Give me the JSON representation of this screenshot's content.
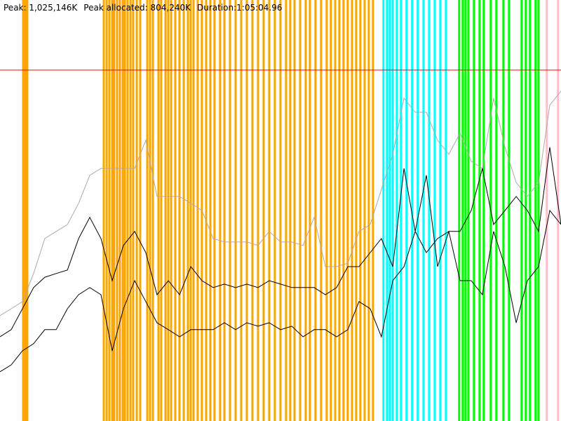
{
  "chart_data": {
    "type": "line",
    "stats": [
      "Peak: 1,025,146K",
      "Peak allocated: 804,240K",
      "Duration:1:05:04.96"
    ],
    "xlim": [
      0,
      3905
    ],
    "ylim": [
      0,
      1230000
    ],
    "x": [
      0,
      78,
      156,
      234,
      312,
      391,
      469,
      547,
      625,
      703,
      781,
      859,
      937,
      1015,
      1093,
      1172,
      1250,
      1328,
      1406,
      1484,
      1562,
      1640,
      1718,
      1796,
      1874,
      1953,
      2031,
      2109,
      2187,
      2265,
      2343,
      2421,
      2499,
      2577,
      2655,
      2734,
      2812,
      2890,
      2968,
      3046,
      3124,
      3202,
      3280,
      3358,
      3436,
      3515,
      3593,
      3671,
      3749,
      3827,
      3905
    ],
    "series": [
      {
        "color": "#aaaaaa",
        "values": [
          308000,
          328000,
          349000,
          431000,
          533000,
          554000,
          574000,
          636000,
          718000,
          738000,
          738000,
          738000,
          738000,
          820000,
          656000,
          656000,
          656000,
          636000,
          615000,
          533000,
          523000,
          523000,
          523000,
          513000,
          554000,
          523000,
          523000,
          513000,
          595000,
          451000,
          451000,
          461000,
          554000,
          574000,
          677000,
          779000,
          943000,
          902000,
          902000,
          820000,
          779000,
          841000,
          759000,
          738000,
          943000,
          800000,
          697000,
          656000,
          697000,
          923000,
          964000
        ]
      },
      {
        "color": "#000000",
        "values": [
          246000,
          267000,
          328000,
          390000,
          420000,
          431000,
          441000,
          533000,
          595000,
          533000,
          410000,
          513000,
          554000,
          492000,
          369000,
          410000,
          369000,
          451000,
          410000,
          390000,
          400000,
          390000,
          400000,
          390000,
          410000,
          400000,
          390000,
          390000,
          390000,
          369000,
          390000,
          451000,
          451000,
          492000,
          533000,
          451000,
          738000,
          554000,
          718000,
          451000,
          554000,
          554000,
          615000,
          738000,
          574000,
          615000,
          656000,
          615000,
          554000,
          800000,
          574000
        ]
      },
      {
        "color": "#000000",
        "values": [
          144000,
          164000,
          205000,
          226000,
          267000,
          267000,
          328000,
          369000,
          390000,
          369000,
          205000,
          328000,
          410000,
          349000,
          287000,
          267000,
          246000,
          267000,
          267000,
          267000,
          287000,
          267000,
          287000,
          277000,
          287000,
          267000,
          277000,
          246000,
          267000,
          267000,
          246000,
          267000,
          349000,
          328000,
          246000,
          410000,
          451000,
          554000,
          492000,
          533000,
          554000,
          410000,
          410000,
          369000,
          554000,
          451000,
          287000,
          410000,
          451000,
          615000,
          574000
        ]
      }
    ],
    "events": [
      {
        "color": "#ffa500",
        "x": [
          161,
          176,
          190,
          722,
          742,
          761,
          781,
          795,
          815,
          834,
          854,
          869,
          888,
          908,
          927,
          952,
          976,
          1025,
          1044,
          1064,
          1103,
          1122,
          1152,
          1171,
          1191,
          1220,
          1249,
          1279,
          1308,
          1327,
          1347,
          1376,
          1405,
          1435,
          1464,
          1493,
          1532,
          1562,
          1601,
          1640,
          1679,
          1718,
          1757,
          1796,
          1835,
          1874,
          1913,
          1952,
          1991,
          2020,
          2050,
          2089,
          2128,
          2157,
          2196,
          2235,
          2274,
          2303,
          2333,
          2362,
          2391,
          2420,
          2450,
          2479,
          2508,
          2538,
          2567,
          2596
        ]
      },
      {
        "color": "#00ffff",
        "x": [
          2669,
          2694,
          2713,
          2733,
          2762,
          2791,
          2830,
          2869,
          2908,
          2948,
          2987,
          3026,
          3065,
          3104
        ]
      },
      {
        "color": "#00ff00",
        "x": [
          3196,
          3221,
          3240,
          3260,
          3299,
          3338,
          3367,
          3416,
          3455,
          3504,
          3543,
          3631,
          3660,
          3689,
          3728,
          3748
        ]
      },
      {
        "color": "#ffc0cb",
        "x": [
          3806,
          3884
        ]
      }
    ],
    "reference_line": {
      "value": 1025146,
      "color": "#ff0000"
    }
  }
}
